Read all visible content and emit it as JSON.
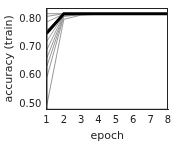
{
  "chart_data": {
    "type": "line",
    "x_label": "epoch",
    "y_label": "accuracy (train)",
    "x": [
      1,
      2,
      3,
      4,
      5,
      6,
      7,
      8
    ],
    "xlim": [
      1,
      8
    ],
    "xticks": [
      1,
      2,
      3,
      4,
      5,
      6,
      7,
      8
    ],
    "ylim": [
      0.48,
      0.84
    ],
    "yticks": [
      {
        "value": 0.5,
        "label": "0.50"
      },
      {
        "value": 0.6,
        "label": "0.60"
      },
      {
        "value": 0.7,
        "label": "0.70"
      },
      {
        "value": 0.8,
        "label": "0.80"
      }
    ],
    "grid": false,
    "series": [
      {
        "color": "#999999",
        "line_style": "solid",
        "values": [
          0.49,
          0.8,
          0.815,
          0.818,
          0.819,
          0.82,
          0.82,
          0.82
        ]
      },
      {
        "color": "#999999",
        "line_style": "solid",
        "values": [
          0.59,
          0.81,
          0.817,
          0.819,
          0.82,
          0.82,
          0.82,
          0.82
        ]
      },
      {
        "color": "#999999",
        "line_style": "solid",
        "values": [
          0.63,
          0.812,
          0.818,
          0.82,
          0.82,
          0.82,
          0.82,
          0.82
        ]
      },
      {
        "color": "#999999",
        "line_style": "solid",
        "values": [
          0.66,
          0.815,
          0.819,
          0.82,
          0.82,
          0.82,
          0.82,
          0.82
        ]
      },
      {
        "color": "#999999",
        "line_style": "solid",
        "values": [
          0.69,
          0.816,
          0.819,
          0.82,
          0.82,
          0.82,
          0.82,
          0.82
        ]
      },
      {
        "color": "#999999",
        "line_style": "solid",
        "values": [
          0.72,
          0.817,
          0.82,
          0.82,
          0.82,
          0.82,
          0.82,
          0.82
        ]
      },
      {
        "color": "#999999",
        "line_style": "solid",
        "values": [
          0.76,
          0.818,
          0.82,
          0.82,
          0.82,
          0.82,
          0.82,
          0.82
        ]
      },
      {
        "color": "#999999",
        "line_style": "solid",
        "values": [
          0.79,
          0.819,
          0.82,
          0.82,
          0.82,
          0.82,
          0.82,
          0.82
        ]
      },
      {
        "color": "#999999",
        "line_style": "solid",
        "values": [
          0.81,
          0.82,
          0.82,
          0.82,
          0.82,
          0.82,
          0.82,
          0.82
        ]
      },
      {
        "color": "#999999",
        "line_style": "solid",
        "values": [
          0.82,
          0.82,
          0.82,
          0.82,
          0.82,
          0.82,
          0.82,
          0.82
        ]
      },
      {
        "color": "#000000",
        "line_style": "thick",
        "values": [
          0.75,
          0.82,
          0.82,
          0.82,
          0.82,
          0.82,
          0.82,
          0.82
        ]
      }
    ]
  }
}
